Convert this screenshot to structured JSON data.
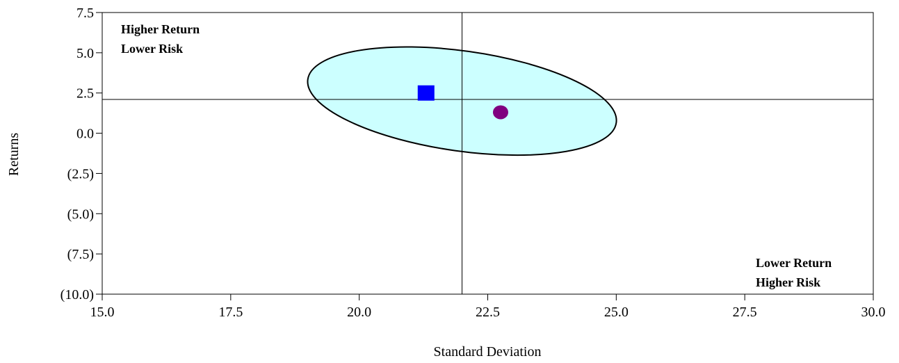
{
  "chart_data": {
    "type": "scatter",
    "xlabel": "Standard Deviation",
    "ylabel": "Returns",
    "xlim": [
      15.0,
      30.0
    ],
    "ylim": [
      -10.0,
      7.5
    ],
    "x_ticks": [
      15.0,
      17.5,
      20.0,
      22.5,
      25.0,
      27.5,
      30.0
    ],
    "x_tick_labels": [
      "15.0",
      "17.5",
      "20.0",
      "22.5",
      "25.0",
      "27.5",
      "30.0"
    ],
    "y_ticks": [
      7.5,
      5.0,
      2.5,
      0.0,
      -2.5,
      -5.0,
      -7.5,
      -10.0
    ],
    "y_tick_labels": [
      "7.5",
      "5.0",
      "2.5",
      "0.0",
      "(2.5)",
      "(5.0)",
      "(7.5)",
      "(10.0)"
    ],
    "reference_lines": {
      "x": 22.0,
      "y": 2.1
    },
    "ellipse": {
      "center_x": 22.0,
      "center_y": 2.0,
      "fill": "#ccffff"
    },
    "series": [
      {
        "marker": "square",
        "color": "#0000ff",
        "points": [
          {
            "x": 21.3,
            "y": 2.5
          }
        ]
      },
      {
        "marker": "circle",
        "color": "#800080",
        "points": [
          {
            "x": 22.75,
            "y": 1.3
          }
        ]
      }
    ],
    "annotations": [
      {
        "lines": [
          "Higher Return",
          "Lower Risk"
        ],
        "position": "top-left"
      },
      {
        "lines": [
          "Lower Return",
          "Higher Risk"
        ],
        "position": "bottom-right"
      }
    ],
    "grid": false,
    "legend": "none"
  }
}
